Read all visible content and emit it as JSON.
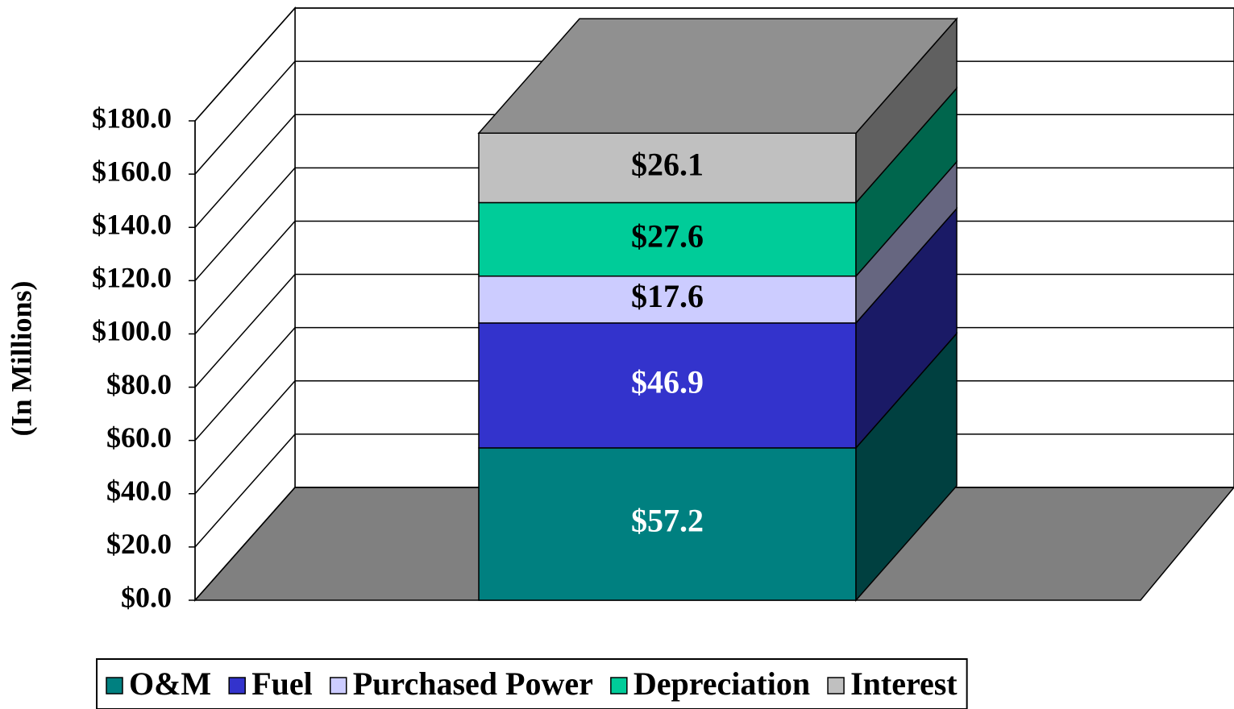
{
  "chart_data": {
    "type": "bar3d_stacked",
    "y_axis_label": "(In Millions)",
    "categories": [
      null
    ],
    "series": [
      {
        "name": "O&M",
        "color": "#008080",
        "values": [
          57.2
        ],
        "value_labels": [
          "$57.2"
        ]
      },
      {
        "name": "Fuel",
        "color": "#3333cc",
        "values": [
          46.9
        ],
        "value_labels": [
          "$46.9"
        ]
      },
      {
        "name": "Purchased Power",
        "color": "#ccccff",
        "values": [
          17.6
        ],
        "value_labels": [
          "$17.6"
        ]
      },
      {
        "name": "Depreciation",
        "color": "#00cc99",
        "values": [
          27.6
        ],
        "value_labels": [
          "$27.6"
        ]
      },
      {
        "name": "Interest",
        "color": "#c0c0c0",
        "values": [
          26.1
        ],
        "value_labels": [
          "$26.1"
        ]
      }
    ],
    "ylim": [
      0,
      180
    ],
    "yticks": [
      {
        "value": 0,
        "label": "$0.0"
      },
      {
        "value": 20,
        "label": "$20.0"
      },
      {
        "value": 40,
        "label": "$40.0"
      },
      {
        "value": 60,
        "label": "$60.0"
      },
      {
        "value": 80,
        "label": "$80.0"
      },
      {
        "value": 100,
        "label": "$100.0"
      },
      {
        "value": 120,
        "label": "$120.0"
      },
      {
        "value": 140,
        "label": "$140.0"
      },
      {
        "value": 160,
        "label": "$160.0"
      },
      {
        "value": 180,
        "label": "$180.0"
      }
    ],
    "grid": true,
    "legend": "bottom"
  }
}
